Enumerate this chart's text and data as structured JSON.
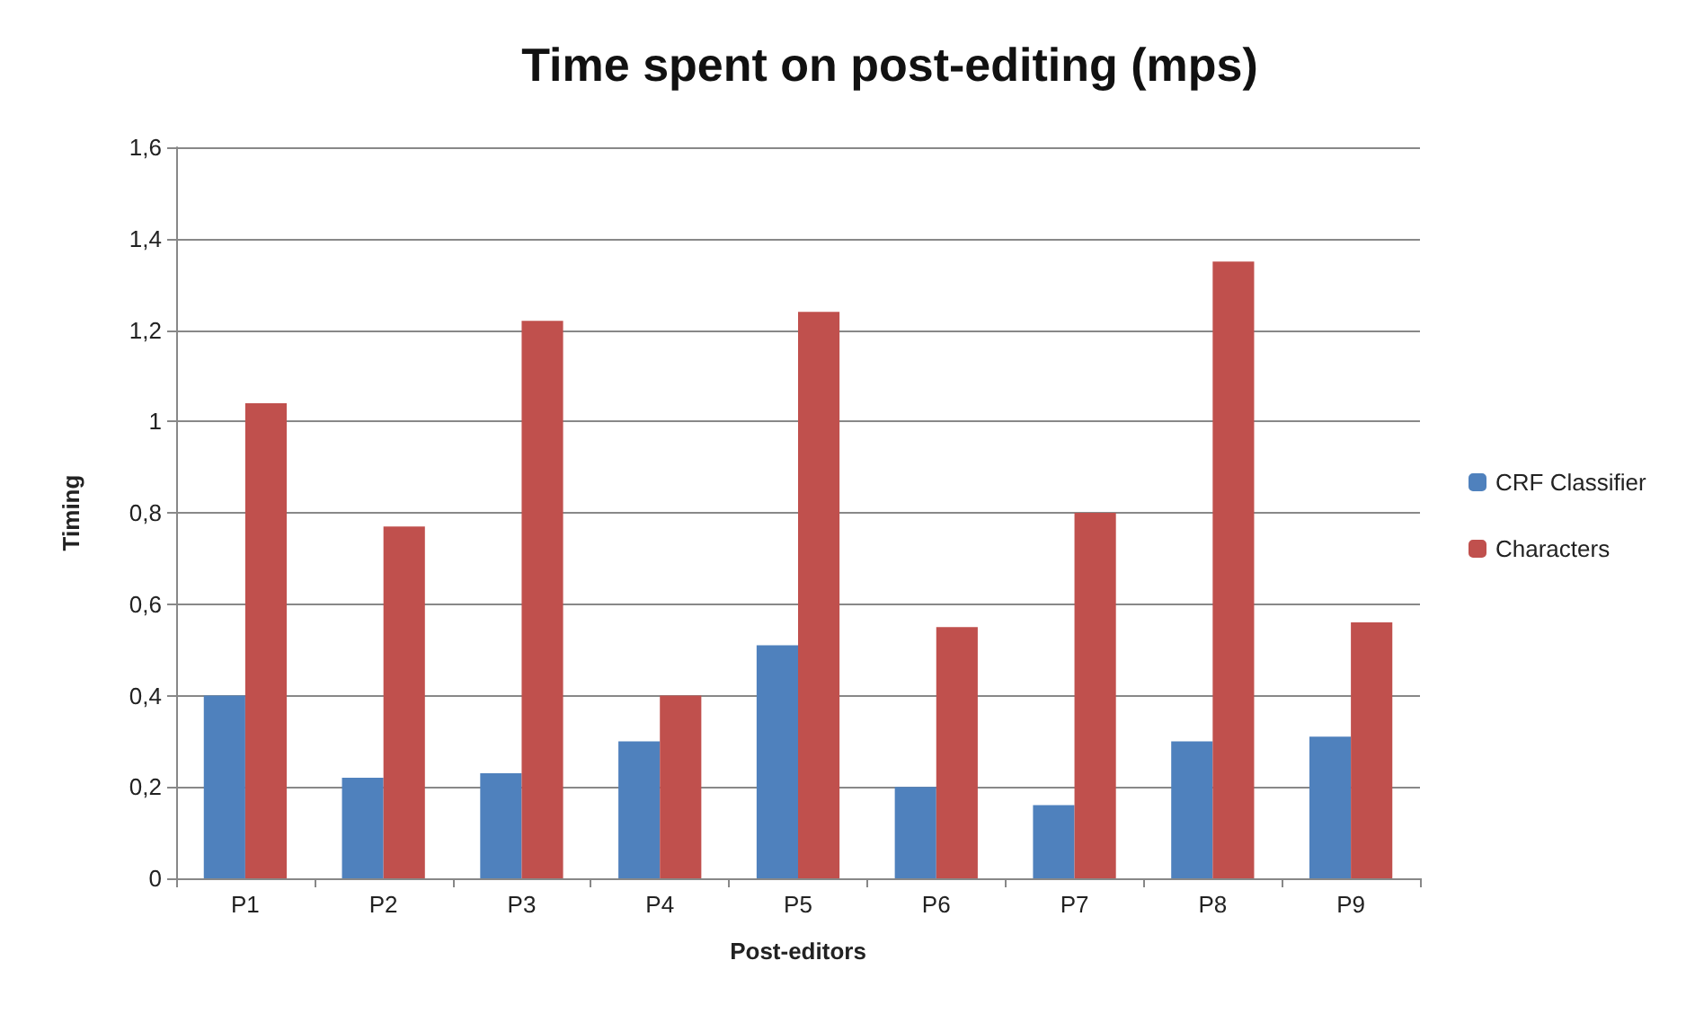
{
  "chart_data": {
    "type": "bar",
    "title": "Time spent on post-editing (mps)",
    "xlabel": "Post-editors",
    "ylabel": "Timing",
    "categories": [
      "P1",
      "P2",
      "P3",
      "P4",
      "P5",
      "P6",
      "P7",
      "P8",
      "P9"
    ],
    "series": [
      {
        "name": "CRF Classifier",
        "color": "#4f81bd",
        "values": [
          0.4,
          0.22,
          0.23,
          0.3,
          0.51,
          0.2,
          0.16,
          0.3,
          0.31
        ]
      },
      {
        "name": "Characters",
        "color": "#c0504d",
        "values": [
          1.04,
          0.77,
          1.22,
          0.4,
          1.24,
          0.55,
          0.8,
          1.35,
          0.56
        ]
      }
    ],
    "ylim": [
      0,
      1.6
    ],
    "yticks": [
      0,
      {
        "value": 0.2,
        "label": "0,2"
      },
      {
        "value": 0.4,
        "label": "0,4"
      },
      {
        "value": 0.6,
        "label": "0,6"
      },
      {
        "value": 0.8,
        "label": "0,8"
      },
      1,
      {
        "value": 1.2,
        "label": "1,2"
      },
      {
        "value": 1.4,
        "label": "1,4"
      },
      {
        "value": 1.6,
        "label": "1,6"
      }
    ],
    "grid": "y",
    "legend": "right"
  }
}
